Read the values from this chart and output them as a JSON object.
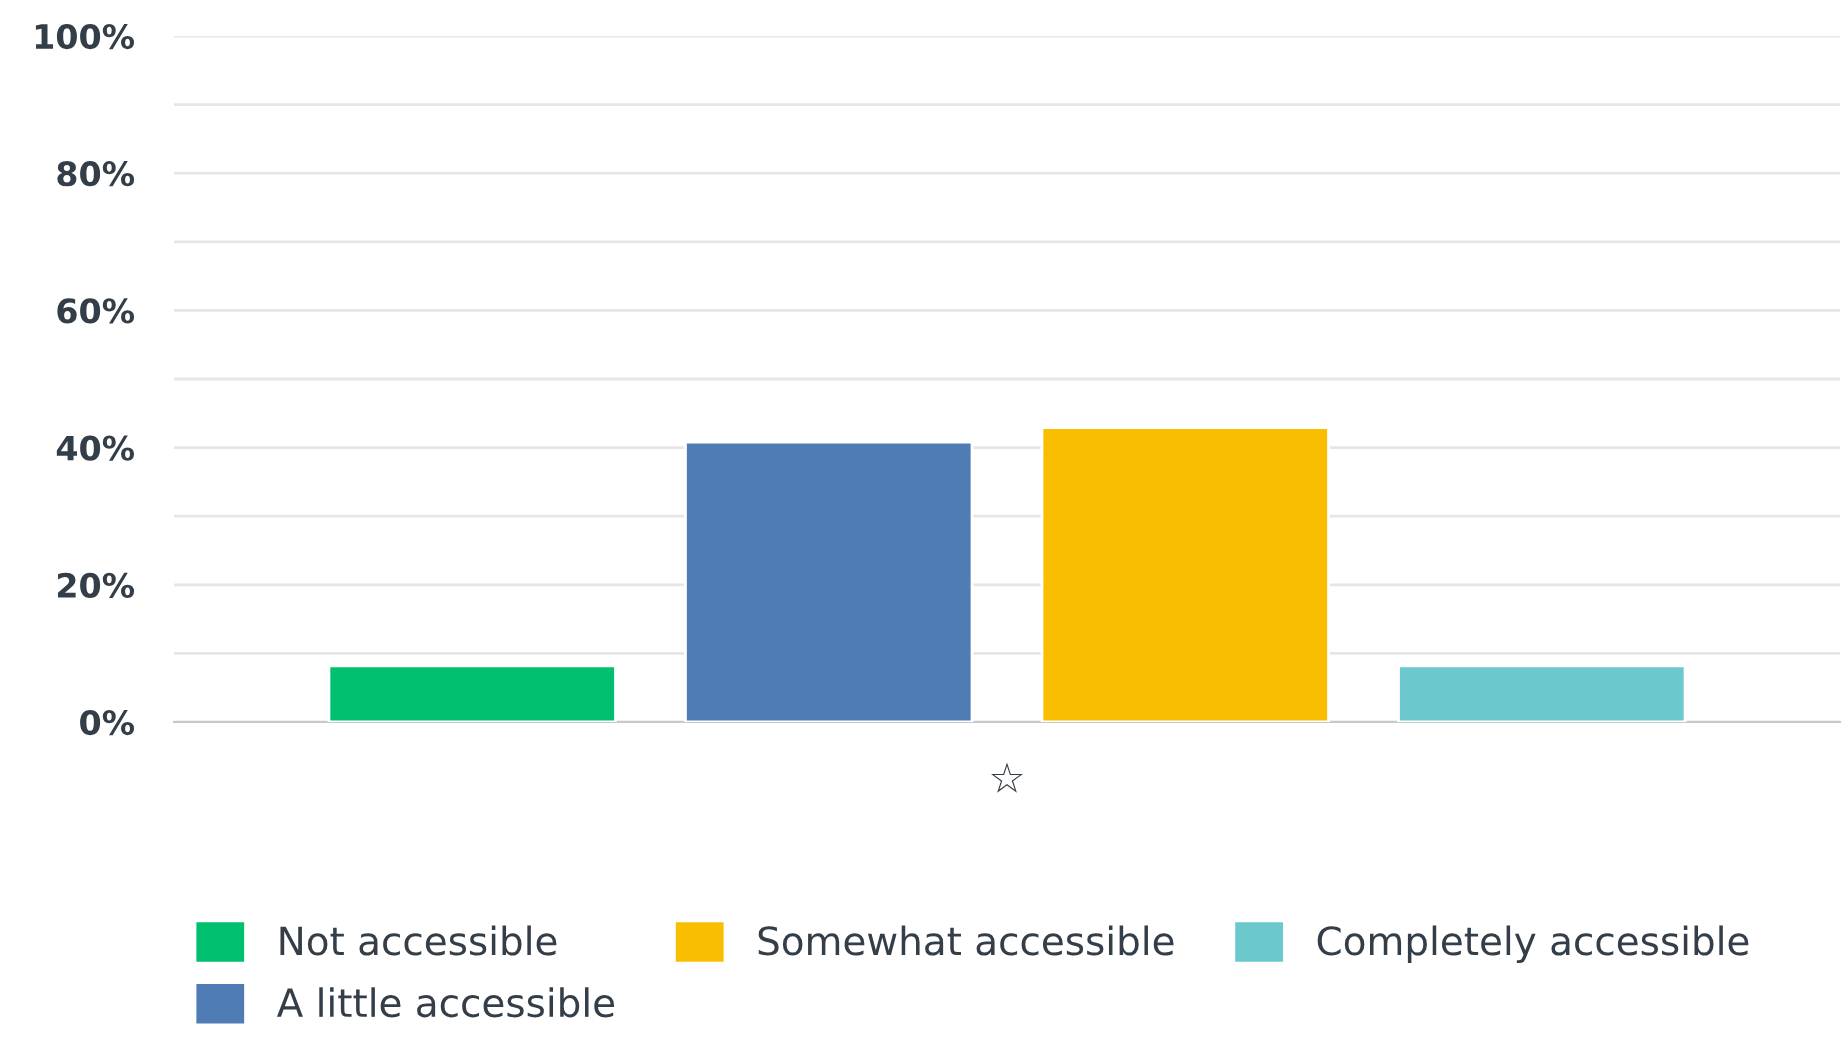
{
  "chart_data": {
    "type": "bar",
    "categories": [
      "☆"
    ],
    "series": [
      {
        "name": "Not accessible",
        "color": "#00bf6f",
        "values": [
          8.2
        ]
      },
      {
        "name": "A little accessible",
        "color": "#507cb6",
        "values": [
          40.8
        ]
      },
      {
        "name": "Somewhat accessible",
        "color": "#f9be00",
        "values": [
          42.9
        ]
      },
      {
        "name": "Completely accessible",
        "color": "#6bc8cd",
        "values": [
          8.2
        ]
      }
    ],
    "ylim": [
      0,
      100
    ],
    "yticks": [
      {
        "value": 0,
        "label": "0%"
      },
      {
        "value": 10,
        "label": null
      },
      {
        "value": 20,
        "label": "20%"
      },
      {
        "value": 30,
        "label": null
      },
      {
        "value": 40,
        "label": "40%"
      },
      {
        "value": 50,
        "label": null
      },
      {
        "value": 60,
        "label": "60%"
      },
      {
        "value": 70,
        "label": null
      },
      {
        "value": 80,
        "label": "80%"
      },
      {
        "value": 90,
        "label": null
      },
      {
        "value": 100,
        "label": "100%"
      }
    ],
    "grid": "y",
    "legend": "bottom"
  }
}
